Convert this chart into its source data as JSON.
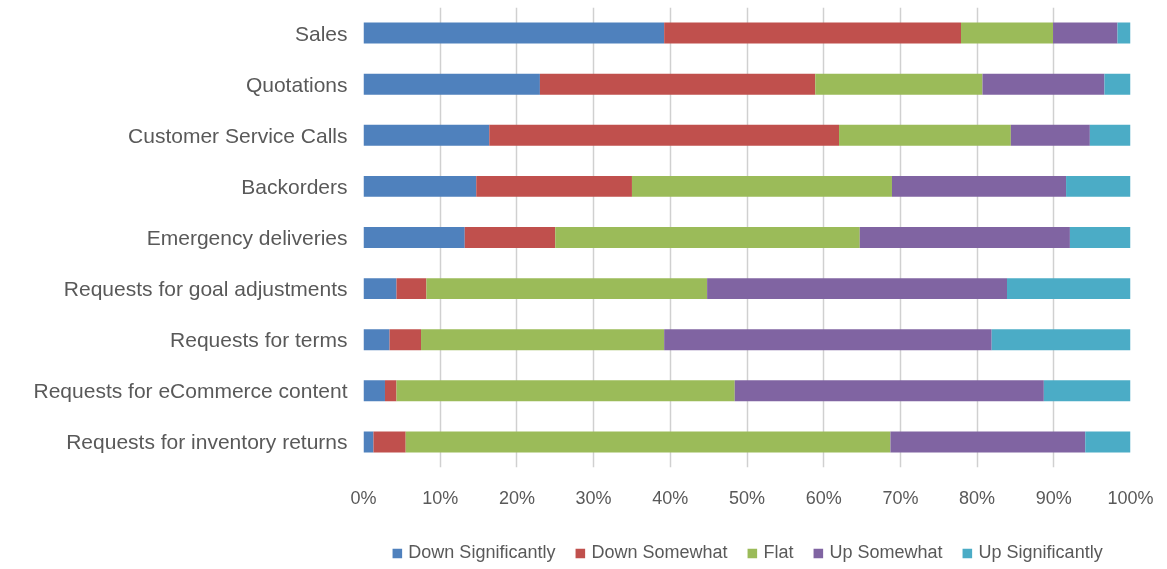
{
  "chart_data": {
    "type": "bar",
    "orientation": "horizontal",
    "stacked": true,
    "categories": [
      "Sales",
      "Quotations",
      "Customer Service Calls",
      "Backorders",
      "Emergency deliveries",
      "Requests for goal adjustments",
      "Requests for terms",
      "Requests for eCommerce content",
      "Requests for inventory returns"
    ],
    "series": [
      {
        "name": "Down Significantly",
        "color": "#4f81bd",
        "values": [
          39.2,
          23.0,
          16.4,
          14.7,
          13.2,
          4.3,
          3.4,
          2.8,
          1.3
        ]
      },
      {
        "name": "Down Somewhat",
        "color": "#c0504d",
        "values": [
          38.7,
          35.9,
          45.6,
          20.3,
          11.8,
          3.9,
          4.1,
          1.5,
          4.2
        ]
      },
      {
        "name": "Flat",
        "color": "#9bbb59",
        "values": [
          12.0,
          21.8,
          22.4,
          33.9,
          39.7,
          36.6,
          31.7,
          44.1,
          63.2
        ]
      },
      {
        "name": "Up Somewhat",
        "color": "#8064a2",
        "values": [
          8.4,
          15.9,
          10.3,
          22.7,
          27.4,
          39.1,
          42.7,
          40.3,
          25.4
        ]
      },
      {
        "name": "Up Significantly",
        "color": "#4bacc6",
        "values": [
          1.7,
          3.4,
          5.3,
          8.4,
          7.9,
          16.1,
          18.1,
          11.3,
          5.9
        ]
      }
    ],
    "xlim": [
      0,
      100
    ],
    "xticks": [
      {
        "value": 0,
        "label": "0%"
      },
      {
        "value": 10,
        "label": "10%"
      },
      {
        "value": 20,
        "label": "20%"
      },
      {
        "value": 30,
        "label": "30%"
      },
      {
        "value": 40,
        "label": "40%"
      },
      {
        "value": 50,
        "label": "50%"
      },
      {
        "value": 60,
        "label": "60%"
      },
      {
        "value": 70,
        "label": "70%"
      },
      {
        "value": 80,
        "label": "80%"
      },
      {
        "value": 90,
        "label": "90%"
      },
      {
        "value": 100,
        "label": "100%"
      }
    ],
    "grid": "x",
    "legend": "bottom"
  }
}
